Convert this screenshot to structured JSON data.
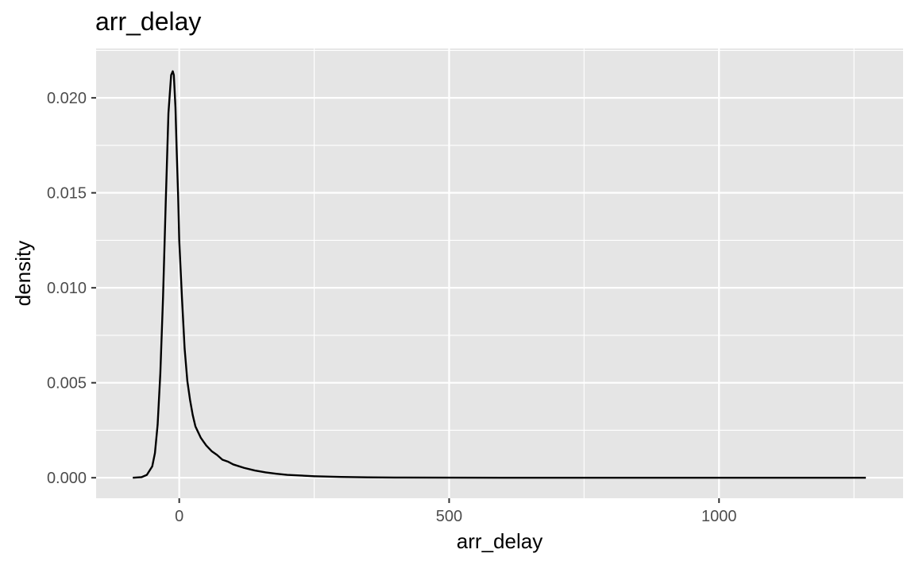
{
  "chart_data": {
    "type": "line",
    "subtype": "density",
    "title": "arr_delay",
    "xlabel": "arr_delay",
    "ylabel": "density",
    "xlim": [
      -154,
      1341
    ],
    "ylim": [
      -0.00108,
      0.0226
    ],
    "grid": true,
    "panel_background": "#e5e5e5",
    "grid_color": "#ffffff",
    "line_color": "#000000",
    "x_ticks": [
      0,
      500,
      1000
    ],
    "x_tick_labels": [
      "0",
      "500",
      "1000"
    ],
    "y_ticks": [
      0,
      0.005,
      0.01,
      0.015,
      0.02
    ],
    "y_tick_labels": [
      "0.000",
      "0.005",
      "0.010",
      "0.015",
      "0.020"
    ],
    "series": [
      {
        "x": [
          -86,
          -70,
          -60,
          -50,
          -45,
          -40,
          -35,
          -30,
          -25,
          -20,
          -15,
          -12,
          -10,
          -7,
          -5,
          -2,
          0,
          5,
          10,
          15,
          20,
          25,
          30,
          35,
          40,
          45,
          50,
          60,
          70,
          80,
          90,
          100,
          120,
          140,
          160,
          180,
          200,
          250,
          300,
          350,
          400,
          500,
          600,
          800,
          1000,
          1272
        ],
        "y": [
          0.0,
          3e-05,
          0.00015,
          0.0006,
          0.0013,
          0.0028,
          0.0055,
          0.0095,
          0.0145,
          0.0192,
          0.0212,
          0.0214,
          0.0212,
          0.0195,
          0.0175,
          0.0148,
          0.0125,
          0.0095,
          0.0068,
          0.0051,
          0.0041,
          0.0033,
          0.0027,
          0.0024,
          0.0021,
          0.0019,
          0.0017,
          0.0014,
          0.0012,
          0.00095,
          0.00085,
          0.0007,
          0.00052,
          0.00038,
          0.00028,
          0.00021,
          0.00015,
          8e-05,
          4e-05,
          2e-05,
          1e-05,
          4e-06,
          2e-06,
          1e-06,
          5e-07,
          0.0
        ]
      }
    ]
  }
}
